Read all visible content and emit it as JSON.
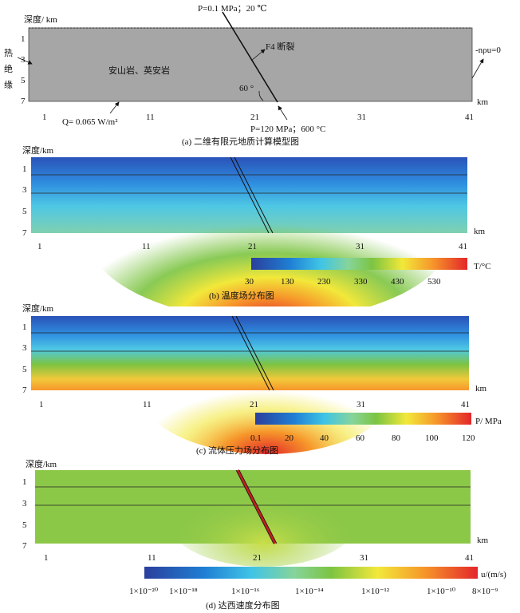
{
  "panel_a": {
    "depth_label": "深度/ km",
    "y_ticks": [
      "1",
      "3",
      "5",
      "7"
    ],
    "x_ticks": [
      "1",
      "11",
      "21",
      "31",
      "41"
    ],
    "x_unit": "km",
    "left_boundary": [
      "热",
      "绝",
      "缘"
    ],
    "rock_label": "安山岩、英安岩",
    "fault_label": "F4 断裂",
    "angle_label": "60 °",
    "top_condition": "P=0.1 MPa；20 ℃",
    "bottom_condition": "P=120 MPa；600 °C",
    "heat_flux": "Q= 0.065 W/m²",
    "right_boundary": "-nρu=0",
    "caption": "(a) 二维有限元地质计算模型图",
    "colors": {
      "model_fill": "#a6a6a6"
    }
  },
  "panel_b": {
    "depth_label": "深度/km",
    "y_ticks": [
      "1",
      "3",
      "5",
      "7"
    ],
    "x_ticks": [
      "1",
      "11",
      "21",
      "31",
      "41"
    ],
    "x_unit": "km",
    "colorbar_ticks": [
      "30",
      "130",
      "230",
      "330",
      "430",
      "530"
    ],
    "colorbar_unit": "T/°C",
    "caption": "(b) 温度场分布图"
  },
  "panel_c": {
    "depth_label": "深度/km",
    "y_ticks": [
      "1",
      "3",
      "5",
      "7"
    ],
    "x_ticks": [
      "1",
      "11",
      "21",
      "31",
      "41"
    ],
    "x_unit": "km",
    "colorbar_ticks": [
      "0.1",
      "20",
      "40",
      "60",
      "80",
      "100",
      "120"
    ],
    "colorbar_unit": "P/ MPa",
    "caption": "(c)  流体压力场分布图"
  },
  "panel_d": {
    "depth_label": "深度/km",
    "y_ticks": [
      "1",
      "3",
      "5",
      "7"
    ],
    "x_ticks": [
      "1",
      "11",
      "21",
      "31",
      "41"
    ],
    "x_unit": "km",
    "colorbar_ticks": [
      "1×10⁻²⁰",
      "1×10⁻¹⁸",
      "1×10⁻¹⁶",
      "1×10⁻¹⁴",
      "1×10⁻¹²",
      "1×10⁻¹⁰",
      "8×10⁻⁹"
    ],
    "colorbar_unit": "u/(m/s)",
    "caption": "(d) 达西速度分布图"
  }
}
